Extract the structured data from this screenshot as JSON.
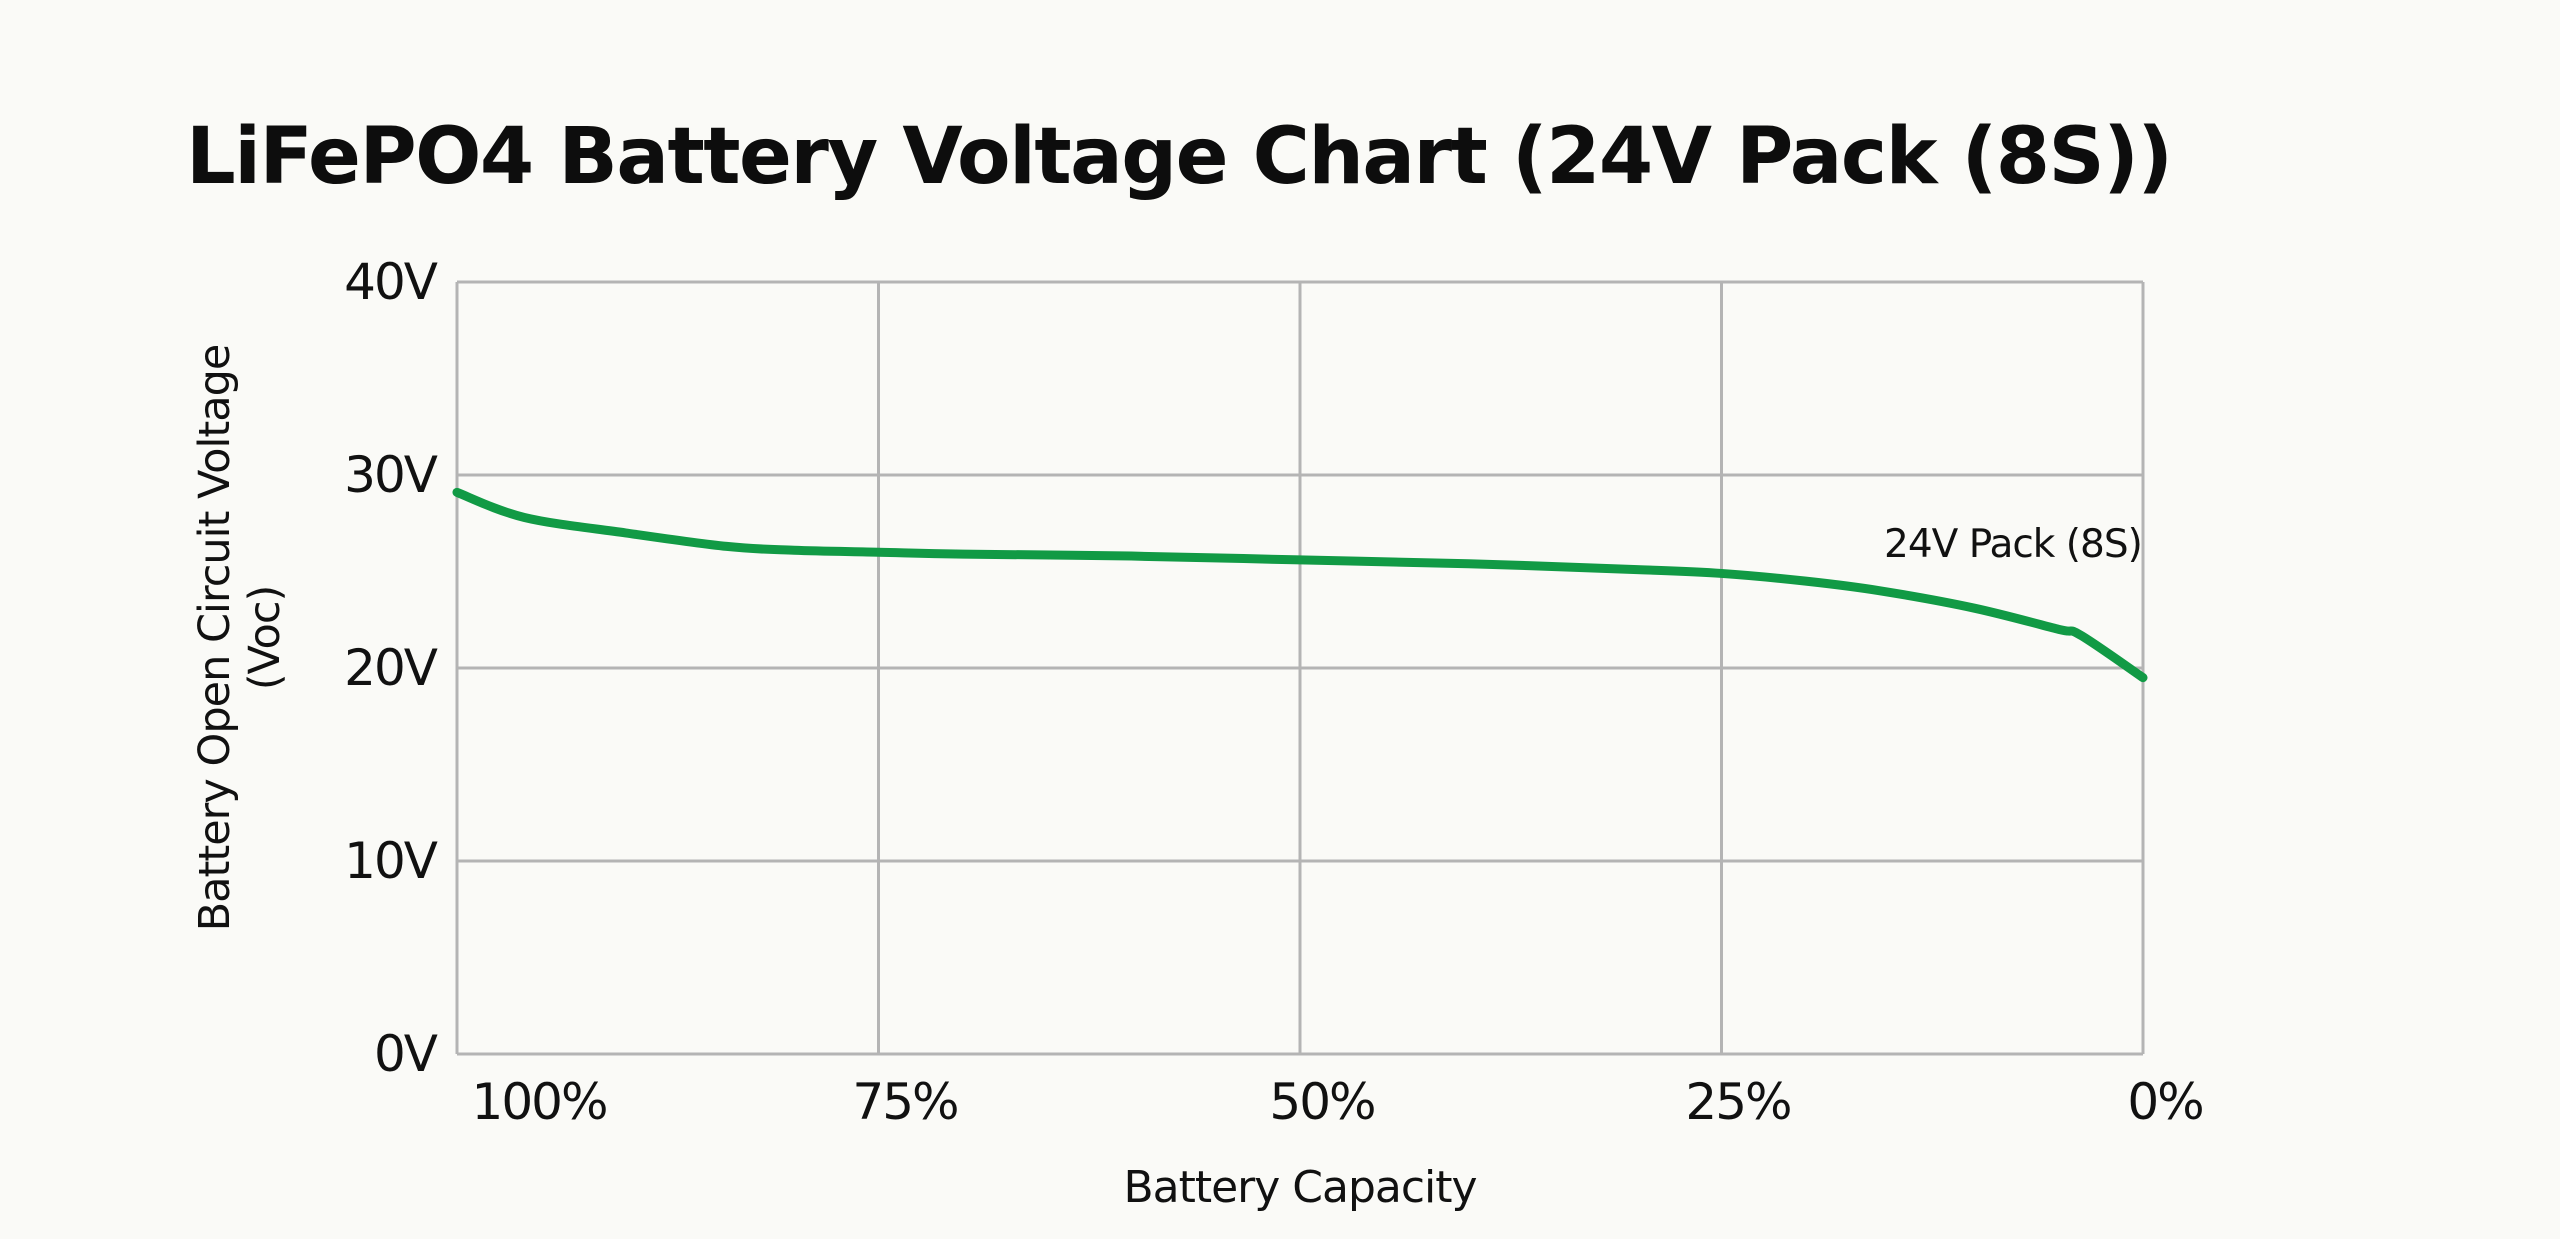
{
  "chart_data": {
    "type": "line",
    "title": "LiFePO4 Battery Voltage Chart (24V Pack (8S))",
    "xlabel": "Battery Capacity",
    "ylabel": "Battery Open Circuit Voltage (Voc)",
    "ylabel_lines": [
      "Battery Open Circuit Voltage",
      "(Voc)"
    ],
    "x_ticks": [
      "100%",
      "75%",
      "50%",
      "25%",
      "0%"
    ],
    "x_tick_values": [
      100,
      75,
      50,
      25,
      0
    ],
    "y_ticks": [
      "40V",
      "30V",
      "20V",
      "10V",
      "0V"
    ],
    "y_tick_values": [
      40,
      30,
      20,
      10,
      0
    ],
    "xlim": [
      100,
      0
    ],
    "ylim": [
      0,
      40
    ],
    "grid": true,
    "legend": "inline label near end of series",
    "series": [
      {
        "name": "24V Pack (8S)",
        "color": "#119a45",
        "x": [
          100,
          96,
          90,
          84,
          80,
          75,
          70,
          60,
          50,
          40,
          30,
          25,
          20,
          15.6,
          10,
          5,
          3.7,
          0
        ],
        "values": [
          29.1,
          27.8,
          27.0,
          26.3,
          26.1,
          26.0,
          25.9,
          25.8,
          25.6,
          25.4,
          25.1,
          24.9,
          24.5,
          24.0,
          23.1,
          22.0,
          21.7,
          19.5
        ]
      }
    ]
  },
  "colors": {
    "background": "#fafaf7",
    "grid": "#b4b4b4",
    "line": "#119a45",
    "text": "#111111"
  }
}
